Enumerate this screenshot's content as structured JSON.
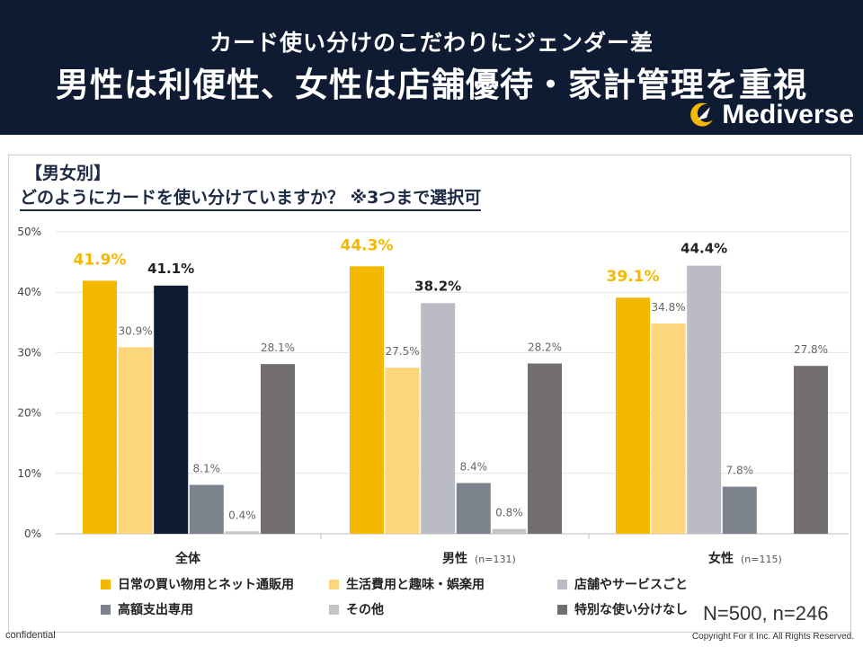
{
  "header": {
    "subtitle": "カード使い分けのこだわりにジェンダー差",
    "title": "男性は利便性、女性は店舗優待・家計管理を重視",
    "brand": "Mediverse"
  },
  "question": {
    "label": "【男女別】",
    "text": "どのようにカードを使い分けていますか？ ※3つまで選択可"
  },
  "chart_data": {
    "type": "bar",
    "y_ticks": [
      "0%",
      "10%",
      "20%",
      "30%",
      "40%",
      "50%"
    ],
    "ylim": [
      0,
      50
    ],
    "grid": true,
    "legend_position": "bottom",
    "groups": [
      {
        "name": "全体",
        "n": ""
      },
      {
        "name": "男性",
        "n": "(n=131)"
      },
      {
        "name": "女性",
        "n": "(n=115)"
      }
    ],
    "series": [
      {
        "name": "日常の買い物用とネット通販用",
        "color": "#f5b800",
        "values": [
          41.9,
          44.3,
          39.1
        ],
        "labels": [
          "41.9%",
          "44.3%",
          "39.1%"
        ]
      },
      {
        "name": "生活費用と趣味・娯楽用",
        "color": "#fdd57a",
        "values": [
          30.9,
          27.5,
          34.8
        ],
        "labels": [
          "30.9%",
          "27.5%",
          "34.8%"
        ]
      },
      {
        "name": "店舗やサービスごと",
        "color": "#babbc4",
        "values": [
          41.1,
          38.2,
          44.4
        ],
        "labels": [
          "41.1%",
          "38.2%",
          "44.4%"
        ]
      },
      {
        "name": "高額支出専用",
        "color": "#7d838c",
        "values": [
          8.1,
          8.4,
          7.8
        ],
        "labels": [
          "8.1%",
          "8.4%",
          "7.8%"
        ]
      },
      {
        "name": "その他",
        "color": "#c4c4c4",
        "values": [
          0.4,
          0.8,
          null
        ],
        "labels": [
          "0.4%",
          "0.8%",
          ""
        ]
      },
      {
        "name": "特別な使い分けなし",
        "color": "#716d70",
        "values": [
          28.1,
          28.2,
          27.8
        ],
        "labels": [
          "28.1%",
          "28.2%",
          "27.8%"
        ]
      }
    ],
    "highlight_color": "#0e1b33"
  },
  "footer": {
    "n_note": "N=500, n=246",
    "confidential": "confidential",
    "copyright": "Copyright For it Inc. All Rights Reserved."
  }
}
